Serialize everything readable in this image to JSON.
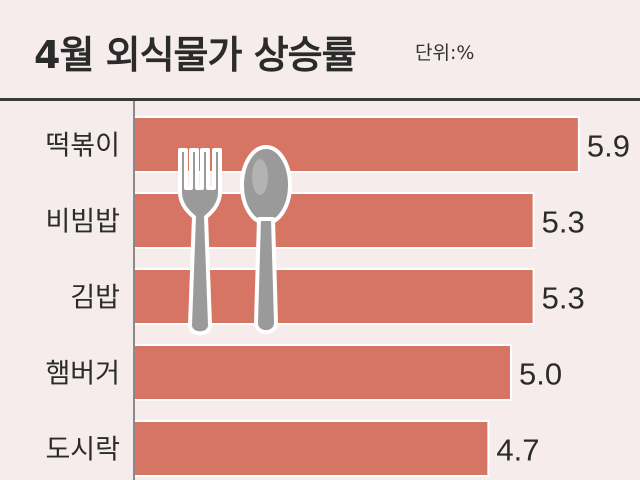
{
  "colors": {
    "background": "#f6ecec",
    "bar": "#d77565",
    "bar_stroke": "#ffffff",
    "text": "#2b2b2b",
    "utensil": "#9a9a9a"
  },
  "icons": [
    "fork-icon",
    "spoon-icon"
  ],
  "chart_data": {
    "type": "bar",
    "orientation": "horizontal",
    "title": "4월 외식물가 상승률",
    "unit": "단위:%",
    "categories": [
      "떡볶이",
      "비빔밥",
      "김밥",
      "햄버거",
      "도시락"
    ],
    "values": [
      5.9,
      5.3,
      5.3,
      5.0,
      4.7
    ],
    "value_labels": [
      "5.9",
      "5.3",
      "5.3",
      "5.0",
      "4.7"
    ],
    "xlim": [
      0,
      6.2
    ],
    "grid": false,
    "legend": "none"
  }
}
